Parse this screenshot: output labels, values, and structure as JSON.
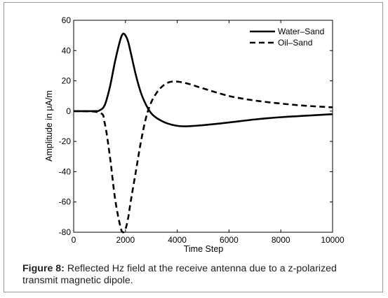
{
  "chart_data": {
    "type": "line",
    "xlabel": "Time Step",
    "ylabel": "Amplitude in μA/m",
    "xlim": [
      0,
      10000
    ],
    "ylim": [
      -80,
      60
    ],
    "xticks": [
      0,
      2000,
      4000,
      6000,
      8000,
      10000
    ],
    "yticks": [
      60,
      40,
      20,
      0,
      -20,
      -40,
      -60,
      -80
    ],
    "grid": false,
    "legend_position": "top-right",
    "series": [
      {
        "name": "Water–Sand",
        "style": "solid",
        "x": [
          0,
          800,
          1000,
          1200,
          1400,
          1600,
          1800,
          1900,
          2000,
          2100,
          2200,
          2400,
          2600,
          2800,
          3000,
          3200,
          3400,
          3600,
          3800,
          4000,
          4200,
          4400,
          4600,
          5000,
          6000,
          7000,
          8000,
          9000,
          10000
        ],
        "y": [
          0,
          0,
          0.5,
          4,
          16,
          33,
          47,
          51,
          50,
          46,
          39,
          24,
          12,
          4,
          -1.5,
          -4.5,
          -6.5,
          -8,
          -9,
          -9.7,
          -10,
          -10,
          -9.8,
          -9.3,
          -7.5,
          -5.5,
          -4,
          -3,
          -2
        ]
      },
      {
        "name": "Oil–Sand",
        "style": "dashed",
        "x": [
          0,
          1000,
          1200,
          1400,
          1600,
          1800,
          1900,
          2000,
          2100,
          2200,
          2400,
          2600,
          2800,
          3000,
          3200,
          3400,
          3600,
          3800,
          4000,
          4200,
          4400,
          4600,
          5000,
          6000,
          7000,
          8000,
          9000,
          10000
        ],
        "y": [
          0,
          -1,
          -8,
          -30,
          -58,
          -76,
          -80,
          -78,
          -71,
          -60,
          -40,
          -20,
          -4,
          6,
          12,
          16,
          18.5,
          19.5,
          19.5,
          19,
          18.2,
          17.2,
          15,
          10,
          7,
          5,
          3.5,
          2.5
        ]
      }
    ]
  },
  "caption": {
    "label": "Figure 8:",
    "text": " Reflected Hz field at the receive antenna due to a z-polarized transmit magnetic dipole."
  }
}
